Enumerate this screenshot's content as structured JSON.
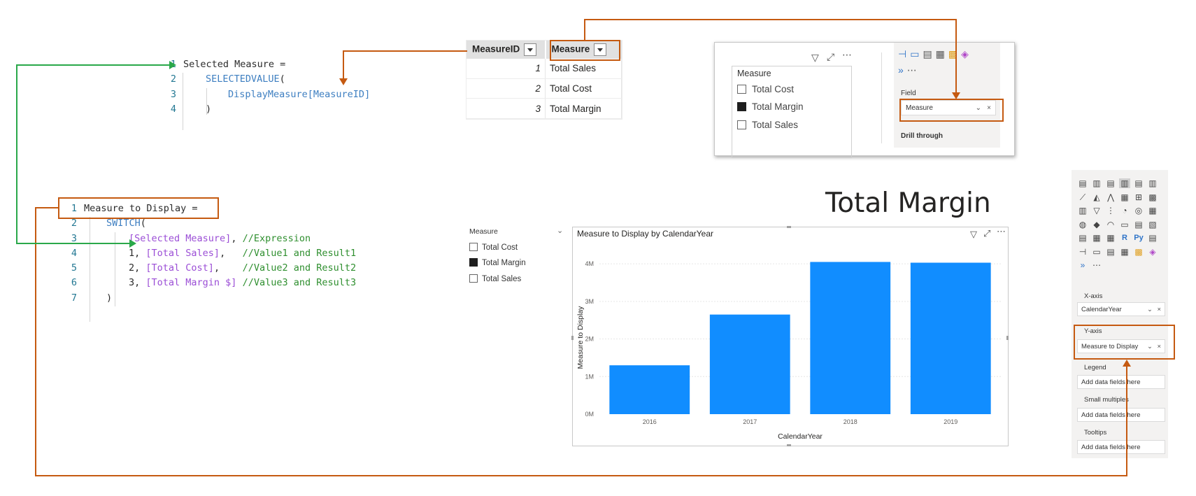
{
  "code_top": {
    "lines": [
      {
        "n": "1",
        "html": "<span class=\"plain\">Selected Measure =</span>"
      },
      {
        "n": "2",
        "html": "<span class=\"fn\">SELECTEDVALUE</span><span class=\"plain\">(</span>"
      },
      {
        "n": "3",
        "html": "<span class=\"fn\">DisplayMeasure[MeasureID]</span>"
      },
      {
        "n": "4",
        "html": "<span class=\"plain\">)</span>"
      }
    ]
  },
  "code_bottom": {
    "lines": [
      {
        "n": "1",
        "html": "<span class=\"plain\">Measure to Display =</span>"
      },
      {
        "n": "2",
        "html": "<span class=\"fn\">SWITCH</span><span class=\"plain\">(</span>"
      },
      {
        "n": "3",
        "html": "<span class=\"ref\">[Selected Measure]</span><span class=\"plain\">, </span><span class=\"cmt\">//Expression</span>"
      },
      {
        "n": "4",
        "html": "<span class=\"plain\">1, </span><span class=\"ref\">[Total Sales]</span><span class=\"plain\">,   </span><span class=\"cmt\">//Value1 and Result1</span>"
      },
      {
        "n": "5",
        "html": "<span class=\"plain\">2, </span><span class=\"ref\">[Total Cost]</span><span class=\"plain\">,    </span><span class=\"cmt\">//Value2 and Result2</span>"
      },
      {
        "n": "6",
        "html": "<span class=\"plain\">3, </span><span class=\"ref\">[Total Margin $]</span><span class=\"plain\"> </span><span class=\"cmt\">//Value3 and Result3</span>"
      },
      {
        "n": "7",
        "html": "<span class=\"plain\">)</span>"
      }
    ]
  },
  "measure_table": {
    "headers": [
      "MeasureID",
      "Measure"
    ],
    "rows": [
      [
        "1",
        "Total Sales"
      ],
      [
        "2",
        "Total Cost"
      ],
      [
        "3",
        "Total Margin"
      ]
    ]
  },
  "slicer_panel": {
    "slicer_title": "Measure",
    "items": [
      {
        "label": "Total Cost",
        "checked": false
      },
      {
        "label": "Total Margin",
        "checked": true
      },
      {
        "label": "Total Sales",
        "checked": false
      }
    ],
    "field_label": "Field",
    "field_value": "Measure",
    "drill_through": "Drill through"
  },
  "big_title": "Total Margin",
  "page_slicer": {
    "title": "Measure",
    "items": [
      {
        "label": "Total Cost",
        "checked": false
      },
      {
        "label": "Total Margin",
        "checked": true
      },
      {
        "label": "Total Sales",
        "checked": false
      }
    ]
  },
  "chart_data": {
    "type": "bar",
    "title": "Measure to Display by CalendarYear",
    "xlabel": "CalendarYear",
    "ylabel": "Measure to Display",
    "categories": [
      "2016",
      "2017",
      "2018",
      "2019"
    ],
    "values": [
      1.3,
      2.65,
      4.05,
      4.03
    ],
    "unit_suffix": "M",
    "yticks": [
      "0M",
      "1M",
      "2M",
      "3M",
      "4M"
    ],
    "ylim": [
      0,
      4.3
    ],
    "bar_color": "#118dff",
    "grid": true
  },
  "viz_pane": {
    "xaxis_label": "X-axis",
    "xaxis_value": "CalendarYear",
    "yaxis_label": "Y-axis",
    "yaxis_value": "Measure to Display",
    "legend_label": "Legend",
    "legend_placeholder": "Add data fields here",
    "small_multiples_label": "Small multiples",
    "small_multiples_placeholder": "Add data fields here",
    "tooltips_label": "Tooltips",
    "tooltips_placeholder": "Add data fields here"
  },
  "colors": {
    "accent_orange": "#c55a11",
    "accent_green": "#2aa84a",
    "bar": "#118dff"
  }
}
